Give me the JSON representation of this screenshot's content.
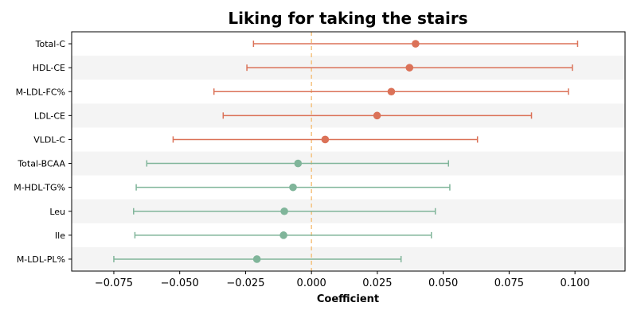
{
  "chart_data": {
    "type": "forest",
    "title": "Liking for taking the stairs",
    "xlabel": "Coefficient",
    "ylabel": "",
    "xlim": [
      -0.091,
      0.119
    ],
    "xticks": [
      -0.075,
      -0.05,
      -0.025,
      0.0,
      0.025,
      0.05,
      0.075,
      0.1
    ],
    "xtick_labels": [
      "−0.075",
      "−0.050",
      "−0.025",
      "0.000",
      "0.025",
      "0.050",
      "0.075",
      "0.100"
    ],
    "reference_line": 0.0,
    "reference_line_color": "#f5c27f",
    "grid": false,
    "alternating_row_bands": true,
    "band_color": "#f4f4f4",
    "colors": {
      "lipid": "#db7258",
      "amino": "#80b59a"
    },
    "categories": [
      "Total-C",
      "HDL-CE",
      "M-LDL-FC%",
      "LDL-CE",
      "VLDL-C",
      "Total-BCAA",
      "M-HDL-TG%",
      "Leu",
      "Ile",
      "M-LDL-PL%"
    ],
    "estimates": [
      0.0395,
      0.0372,
      0.0303,
      0.0249,
      0.0052,
      -0.0051,
      -0.007,
      -0.0103,
      -0.0106,
      -0.0207
    ],
    "lower": [
      -0.022,
      -0.0245,
      -0.037,
      -0.0335,
      -0.0525,
      -0.0625,
      -0.0665,
      -0.0675,
      -0.067,
      -0.075
    ],
    "upper": [
      0.101,
      0.099,
      0.0975,
      0.0835,
      0.063,
      0.052,
      0.0525,
      0.047,
      0.0455,
      0.034
    ],
    "groups": [
      "lipid",
      "lipid",
      "lipid",
      "lipid",
      "lipid",
      "amino",
      "amino",
      "amino",
      "amino",
      "amino"
    ]
  }
}
